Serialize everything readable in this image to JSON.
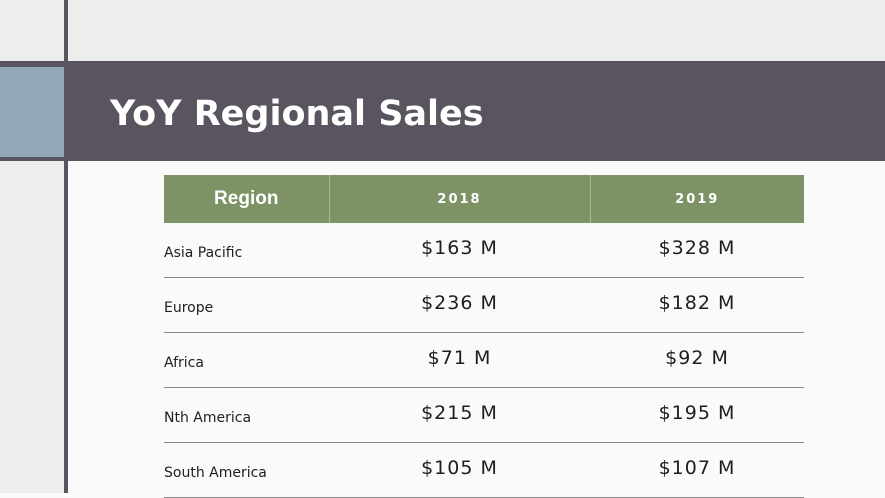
{
  "slide": {
    "title": "YoY Regional Sales"
  },
  "table": {
    "headers": [
      "Region",
      "2018",
      "2019"
    ],
    "rows": [
      {
        "region": "Asia Pacific",
        "y2018": "$163 M",
        "y2019": "$328 M"
      },
      {
        "region": "Europe",
        "y2018": "$236 M",
        "y2019": "$182 M"
      },
      {
        "region": "Africa",
        "y2018": "$71 M",
        "y2019": "$92 M"
      },
      {
        "region": "Nth America",
        "y2018": "$215 M",
        "y2019": "$195 M"
      },
      {
        "region": "South America",
        "y2018": "$105 M",
        "y2019": "$107 M"
      }
    ]
  },
  "colors": {
    "banner": "#5a5460",
    "accent_blue": "#94a8bb",
    "header_green": "#7d9365",
    "panel_gray": "#eceeeb"
  }
}
